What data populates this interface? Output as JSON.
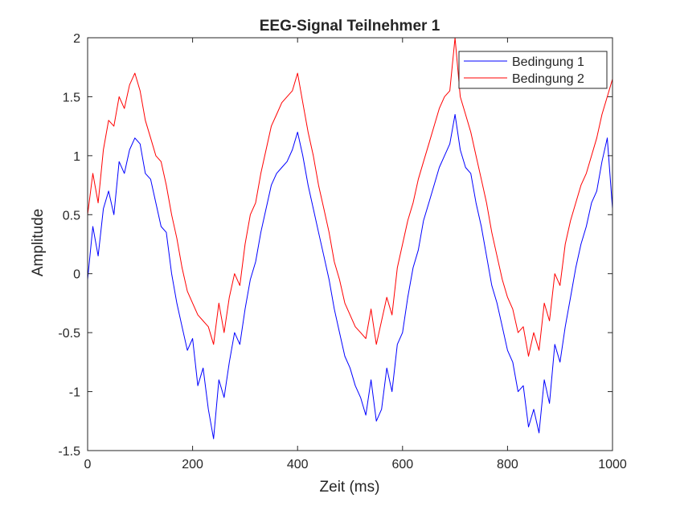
{
  "chart_data": {
    "type": "line",
    "title": "EEG-Signal Teilnehmer 1",
    "xlabel": "Zeit (ms)",
    "ylabel": "Amplitude",
    "xlim": [
      0,
      1000
    ],
    "ylim": [
      -1.5,
      2
    ],
    "xticks": [
      0,
      200,
      400,
      600,
      800,
      1000
    ],
    "xtick_labels": [
      "0",
      "200",
      "400",
      "600",
      "800",
      "1000"
    ],
    "yticks": [
      -1.5,
      -1,
      -0.5,
      0,
      0.5,
      1,
      1.5,
      2
    ],
    "ytick_labels": [
      "-1.5",
      "-1",
      "-0.5",
      "0",
      "0.5",
      "1",
      "1.5",
      "2"
    ],
    "grid": false,
    "legend_position": "top-right",
    "series": [
      {
        "name": "Bedingung 1",
        "color": "#0000ff",
        "x": [
          0,
          10,
          20,
          30,
          40,
          50,
          60,
          70,
          80,
          90,
          100,
          110,
          120,
          130,
          140,
          150,
          160,
          170,
          180,
          190,
          200,
          210,
          220,
          230,
          240,
          250,
          260,
          270,
          280,
          290,
          300,
          310,
          320,
          330,
          340,
          350,
          360,
          370,
          380,
          390,
          400,
          410,
          420,
          430,
          440,
          450,
          460,
          470,
          480,
          490,
          500,
          510,
          520,
          530,
          540,
          550,
          560,
          570,
          580,
          590,
          600,
          610,
          620,
          630,
          640,
          650,
          660,
          670,
          680,
          690,
          700,
          710,
          720,
          730,
          740,
          750,
          760,
          770,
          780,
          790,
          800,
          810,
          820,
          830,
          840,
          850,
          860,
          870,
          880,
          890,
          900,
          910,
          920,
          930,
          940,
          950,
          960,
          970,
          980,
          990,
          1000
        ],
        "y": [
          -0.05,
          0.4,
          0.15,
          0.55,
          0.7,
          0.5,
          0.95,
          0.85,
          1.05,
          1.15,
          1.1,
          0.85,
          0.8,
          0.6,
          0.4,
          0.35,
          0.0,
          -0.25,
          -0.45,
          -0.65,
          -0.55,
          -0.95,
          -0.8,
          -1.15,
          -1.4,
          -0.9,
          -1.05,
          -0.75,
          -0.5,
          -0.6,
          -0.3,
          -0.05,
          0.1,
          0.35,
          0.55,
          0.75,
          0.85,
          0.9,
          0.95,
          1.05,
          1.2,
          1.0,
          0.75,
          0.55,
          0.35,
          0.15,
          -0.05,
          -0.3,
          -0.5,
          -0.7,
          -0.8,
          -0.95,
          -1.05,
          -1.2,
          -0.9,
          -1.25,
          -1.15,
          -0.8,
          -1.0,
          -0.6,
          -0.5,
          -0.2,
          0.05,
          0.2,
          0.45,
          0.6,
          0.75,
          0.9,
          1.0,
          1.1,
          1.35,
          1.05,
          0.9,
          0.85,
          0.6,
          0.4,
          0.15,
          -0.1,
          -0.25,
          -0.45,
          -0.65,
          -0.75,
          -1.0,
          -0.95,
          -1.3,
          -1.15,
          -1.35,
          -0.9,
          -1.1,
          -0.6,
          -0.75,
          -0.45,
          -0.2,
          0.05,
          0.25,
          0.4,
          0.6,
          0.7,
          0.95,
          1.15,
          0.55
        ]
      },
      {
        "name": "Bedingung 2",
        "color": "#ff0000",
        "x": [
          0,
          10,
          20,
          30,
          40,
          50,
          60,
          70,
          80,
          90,
          100,
          110,
          120,
          130,
          140,
          150,
          160,
          170,
          180,
          190,
          200,
          210,
          220,
          230,
          240,
          250,
          260,
          270,
          280,
          290,
          300,
          310,
          320,
          330,
          340,
          350,
          360,
          370,
          380,
          390,
          400,
          410,
          420,
          430,
          440,
          450,
          460,
          470,
          480,
          490,
          500,
          510,
          520,
          530,
          540,
          550,
          560,
          570,
          580,
          590,
          600,
          610,
          620,
          630,
          640,
          650,
          660,
          670,
          680,
          690,
          700,
          710,
          720,
          730,
          740,
          750,
          760,
          770,
          780,
          790,
          800,
          810,
          820,
          830,
          840,
          850,
          860,
          870,
          880,
          890,
          900,
          910,
          920,
          930,
          940,
          950,
          960,
          970,
          980,
          990,
          1000
        ],
        "y": [
          0.5,
          0.85,
          0.6,
          1.05,
          1.3,
          1.25,
          1.5,
          1.4,
          1.6,
          1.7,
          1.55,
          1.3,
          1.15,
          1.0,
          0.95,
          0.75,
          0.5,
          0.3,
          0.05,
          -0.15,
          -0.25,
          -0.35,
          -0.4,
          -0.45,
          -0.6,
          -0.25,
          -0.5,
          -0.2,
          0.0,
          -0.1,
          0.25,
          0.5,
          0.6,
          0.85,
          1.05,
          1.25,
          1.35,
          1.45,
          1.5,
          1.55,
          1.7,
          1.45,
          1.2,
          1.0,
          0.75,
          0.55,
          0.35,
          0.1,
          -0.05,
          -0.25,
          -0.35,
          -0.45,
          -0.5,
          -0.55,
          -0.3,
          -0.6,
          -0.4,
          -0.2,
          -0.35,
          0.05,
          0.25,
          0.45,
          0.6,
          0.8,
          0.95,
          1.1,
          1.25,
          1.4,
          1.5,
          1.55,
          2.0,
          1.5,
          1.35,
          1.2,
          1.0,
          0.8,
          0.6,
          0.35,
          0.15,
          -0.05,
          -0.2,
          -0.3,
          -0.5,
          -0.45,
          -0.7,
          -0.5,
          -0.65,
          -0.25,
          -0.4,
          0.0,
          -0.1,
          0.25,
          0.45,
          0.6,
          0.75,
          0.85,
          1.0,
          1.15,
          1.35,
          1.5,
          1.65
        ]
      }
    ]
  }
}
